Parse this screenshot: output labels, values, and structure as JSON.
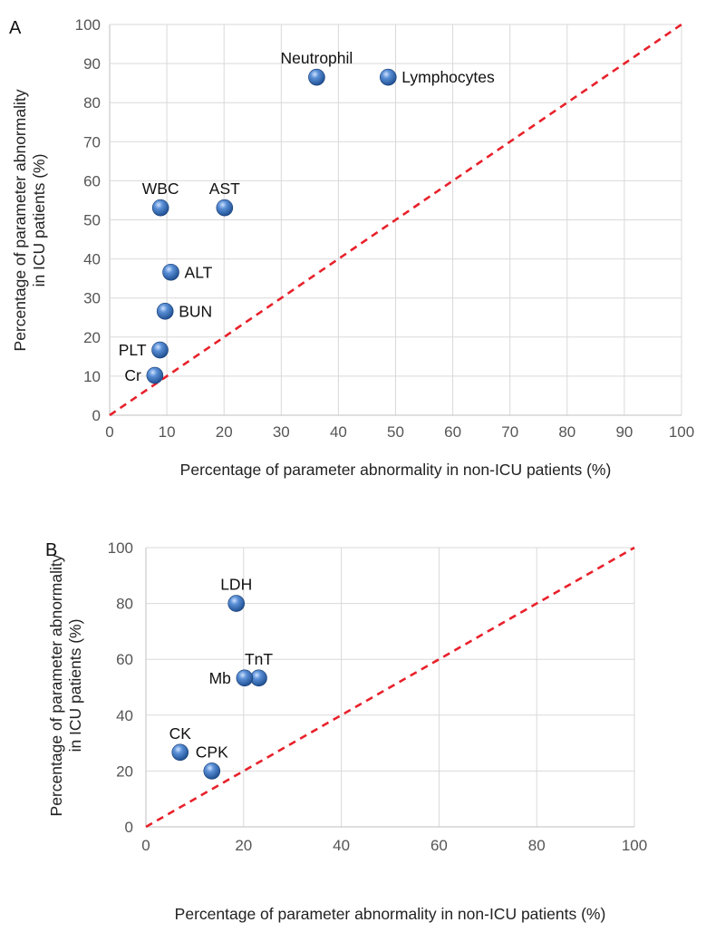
{
  "chart_data": [
    {
      "type": "scatter",
      "panel_label": "A",
      "xlabel": "Percentage of parameter abnormality in non-ICU patients (%)",
      "ylabel": [
        "Percentage of parameter abnormality",
        "in ICU patients (%)"
      ],
      "xlim": [
        0,
        100
      ],
      "ylim": [
        0,
        100
      ],
      "xticks": [
        0,
        10,
        20,
        30,
        40,
        50,
        60,
        70,
        80,
        90,
        100
      ],
      "yticks": [
        0,
        10,
        20,
        30,
        40,
        50,
        60,
        70,
        80,
        90,
        100
      ],
      "grid": true,
      "reference_line": "y = x",
      "points": [
        {
          "label": "Neutrophil",
          "x": 36.2,
          "y": 86.5,
          "label_pos": "above"
        },
        {
          "label": "Lymphocytes",
          "x": 48.7,
          "y": 86.5,
          "label_pos": "right"
        },
        {
          "label": "WBC",
          "x": 8.9,
          "y": 53.1,
          "label_pos": "above"
        },
        {
          "label": "AST",
          "x": 20.1,
          "y": 53.1,
          "label_pos": "above"
        },
        {
          "label": "ALT",
          "x": 10.7,
          "y": 36.6,
          "label_pos": "right"
        },
        {
          "label": "BUN",
          "x": 9.7,
          "y": 26.6,
          "label_pos": "right"
        },
        {
          "label": "PLT",
          "x": 8.8,
          "y": 16.7,
          "label_pos": "left"
        },
        {
          "label": "Cr",
          "x": 7.9,
          "y": 10.2,
          "label_pos": "left"
        }
      ]
    },
    {
      "type": "scatter",
      "panel_label": "B",
      "xlabel": "Percentage of parameter abnormality in non-ICU patients (%)",
      "ylabel": [
        "Percentage of parameter abnormality",
        "in ICU patients (%)"
      ],
      "xlim": [
        0,
        100
      ],
      "ylim": [
        0,
        100
      ],
      "xticks": [
        0,
        20,
        40,
        60,
        80,
        100
      ],
      "yticks": [
        0,
        20,
        40,
        60,
        80,
        100
      ],
      "grid": true,
      "reference_line": "y = x",
      "points": [
        {
          "label": "LDH",
          "x": 18.5,
          "y": 80.0,
          "label_pos": "above"
        },
        {
          "label": "TnT",
          "x": 23.1,
          "y": 53.3,
          "label_pos": "above"
        },
        {
          "label": "Mb",
          "x": 20.2,
          "y": 53.3,
          "label_pos": "left"
        },
        {
          "label": "CK",
          "x": 7.0,
          "y": 26.7,
          "label_pos": "above"
        },
        {
          "label": "CPK",
          "x": 13.5,
          "y": 20.0,
          "label_pos": "above"
        }
      ]
    }
  ]
}
